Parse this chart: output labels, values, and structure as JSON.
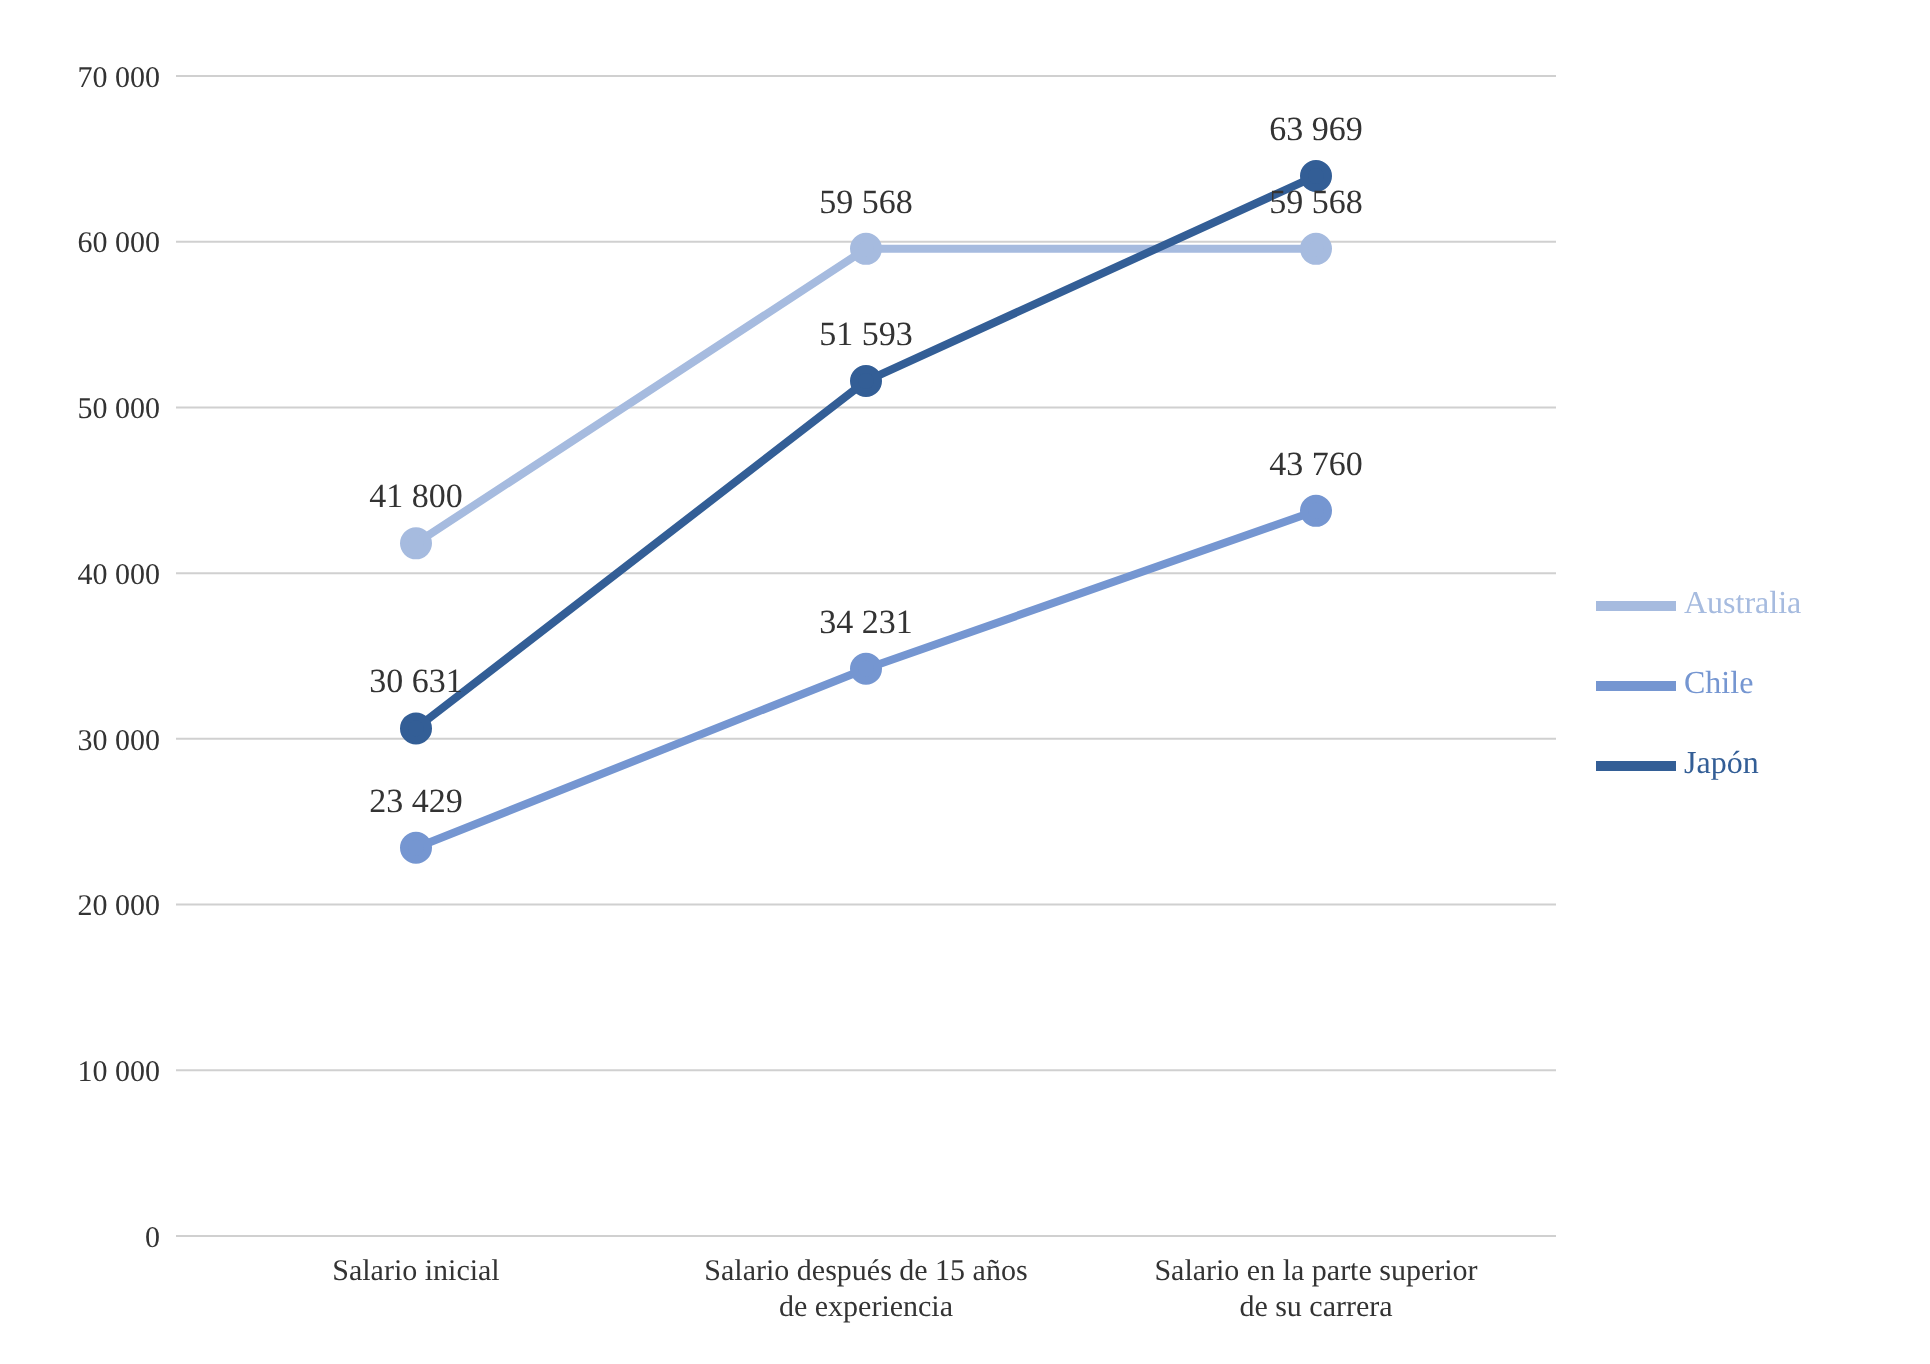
{
  "chart_data": {
    "type": "line",
    "categories": [
      "Salario inicial",
      "Salario después de 15 años de experiencia",
      "Salario en la parte superior de su carrera"
    ],
    "series": [
      {
        "name": "Australia",
        "color": "#a6bbdf",
        "values": [
          41800,
          59568,
          59568
        ],
        "value_labels": [
          "41 800",
          "59 568",
          "59 568"
        ]
      },
      {
        "name": "Chile",
        "color": "#7596d1",
        "values": [
          23429,
          34231,
          43760
        ],
        "value_labels": [
          "23 429",
          "34 231",
          "43 760"
        ]
      },
      {
        "name": "Japón",
        "color": "#335e96",
        "values": [
          30631,
          51593,
          63969
        ],
        "value_labels": [
          "30 631",
          "51 593",
          "63 969"
        ]
      }
    ],
    "ylim": [
      0,
      70000
    ],
    "yticks": [
      0,
      {
        "value": 10000,
        "label": "10 000"
      },
      {
        "value": 20000,
        "label": "20 000"
      },
      {
        "value": 30000,
        "label": "30 000"
      },
      {
        "value": 40000,
        "label": "40 000"
      },
      {
        "value": 50000,
        "label": "50 000"
      },
      {
        "value": 60000,
        "label": "60 000"
      },
      {
        "value": 70000,
        "label": "70 000"
      }
    ],
    "grid": "y",
    "legend": "right",
    "marker": "circle",
    "line_style": "solid"
  }
}
